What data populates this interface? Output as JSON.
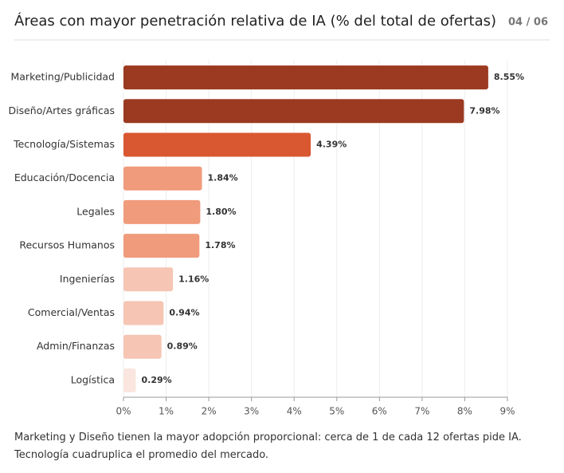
{
  "header": {
    "title": "Áreas con mayor penetración relativa de IA (% del total de ofertas)",
    "page": "04 / 06"
  },
  "chart_data": {
    "type": "bar",
    "orientation": "horizontal",
    "categories": [
      "Marketing/Publicidad",
      "Diseño/Artes gráficas",
      "Tecnología/Sistemas",
      "Educación/Docencia",
      "Legales",
      "Recursos Humanos",
      "Ingenierías",
      "Comercial/Ventas",
      "Admin/Finanzas",
      "Logística"
    ],
    "values": [
      8.55,
      7.98,
      4.39,
      1.84,
      1.8,
      1.78,
      1.16,
      0.94,
      0.89,
      0.29
    ],
    "value_labels": [
      "8.55%",
      "7.98%",
      "4.39%",
      "1.84%",
      "1.80%",
      "1.78%",
      "1.16%",
      "0.94%",
      "0.89%",
      "0.29%"
    ],
    "colors": [
      "#9b3a20",
      "#9b3a20",
      "#d95831",
      "#f09b7c",
      "#f09b7c",
      "#f09b7c",
      "#f6c5b4",
      "#f6c5b4",
      "#f6c5b4",
      "#fae6de"
    ],
    "xlim": [
      0,
      9
    ],
    "xticks": [
      {
        "value": 0,
        "label": "0%"
      },
      {
        "value": 1,
        "label": "1%"
      },
      {
        "value": 2,
        "label": "2%"
      },
      {
        "value": 3,
        "label": "3%"
      },
      {
        "value": 4,
        "label": "4%"
      },
      {
        "value": 5,
        "label": "5%"
      },
      {
        "value": 6,
        "label": "6%"
      },
      {
        "value": 7,
        "label": "7%"
      },
      {
        "value": 8,
        "label": "8%"
      },
      {
        "value": 9,
        "label": "9%"
      }
    ],
    "grid": true
  },
  "caption": "Marketing y Diseño tienen la mayor adopción proporcional: cerca de 1 de cada 12 ofertas pide IA. Tecnología cuadruplica el promedio del mercado."
}
